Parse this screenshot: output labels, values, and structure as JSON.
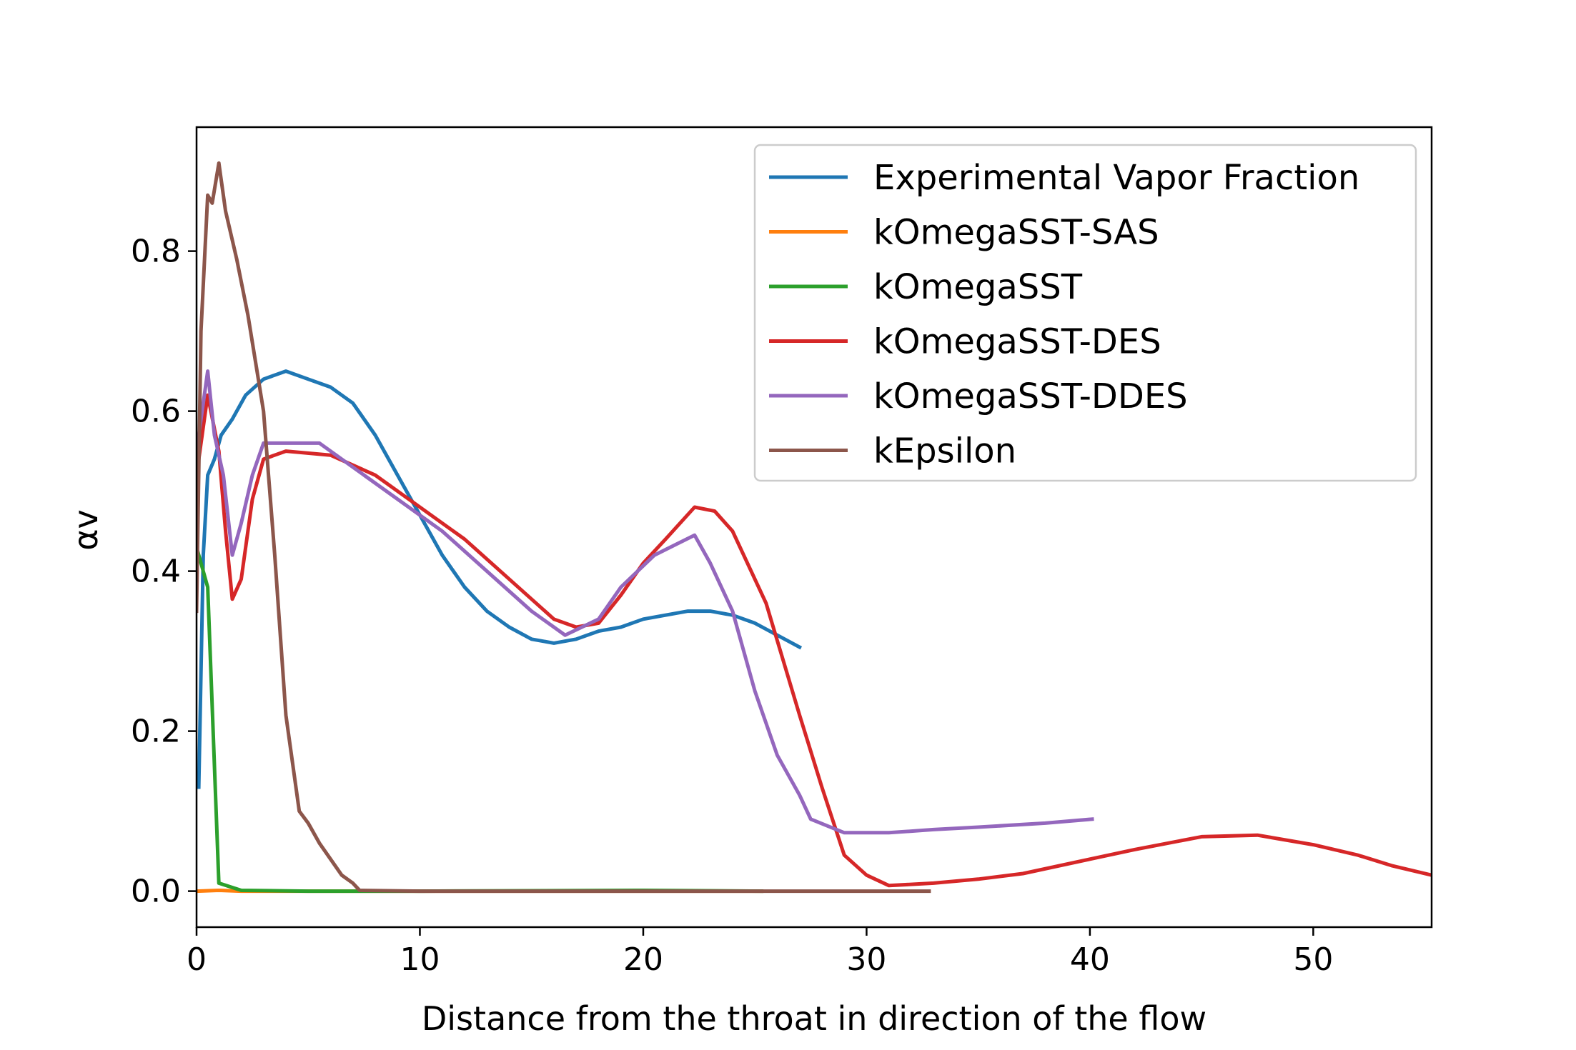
{
  "chart_data": {
    "type": "line",
    "title": "",
    "xlabel": "Distance from the throat in direction of the flow",
    "ylabel": "αv",
    "xlim": [
      0,
      55.3
    ],
    "ylim": [
      -0.045,
      0.955
    ],
    "xticks": [
      0,
      10,
      20,
      30,
      40,
      50
    ],
    "xtick_labels": [
      "0",
      "10",
      "20",
      "30",
      "40",
      "50"
    ],
    "yticks": [
      0.0,
      0.2,
      0.4,
      0.6,
      0.8
    ],
    "ytick_labels": [
      "0.0",
      "0.2",
      "0.4",
      "0.6",
      "0.8"
    ],
    "grid": false,
    "legend_position": "top-right",
    "series": [
      {
        "name": "Experimental Vapor Fraction",
        "color": "#1f77b4",
        "points": [
          [
            0.1,
            0.13
          ],
          [
            0.3,
            0.42
          ],
          [
            0.5,
            0.52
          ],
          [
            0.8,
            0.54
          ],
          [
            1.1,
            0.57
          ],
          [
            1.6,
            0.59
          ],
          [
            2.2,
            0.62
          ],
          [
            3.0,
            0.64
          ],
          [
            4.0,
            0.65
          ],
          [
            5.0,
            0.64
          ],
          [
            6.0,
            0.63
          ],
          [
            7.0,
            0.61
          ],
          [
            8.0,
            0.57
          ],
          [
            9.0,
            0.52
          ],
          [
            10.0,
            0.47
          ],
          [
            11.0,
            0.42
          ],
          [
            12.0,
            0.38
          ],
          [
            13.0,
            0.35
          ],
          [
            14.0,
            0.33
          ],
          [
            15.0,
            0.315
          ],
          [
            16.0,
            0.31
          ],
          [
            17.0,
            0.315
          ],
          [
            18.0,
            0.325
          ],
          [
            19.0,
            0.33
          ],
          [
            20.0,
            0.34
          ],
          [
            21.0,
            0.345
          ],
          [
            22.0,
            0.35
          ],
          [
            23.0,
            0.35
          ],
          [
            24.0,
            0.345
          ],
          [
            25.0,
            0.335
          ],
          [
            26.0,
            0.32
          ],
          [
            27.0,
            0.305
          ]
        ]
      },
      {
        "name": "kOmegaSST-SAS",
        "color": "#ff7f0e",
        "points": [
          [
            0.0,
            0.0
          ],
          [
            1.0,
            0.001
          ],
          [
            2.0,
            0.0
          ],
          [
            10.0,
            0.0
          ],
          [
            25.3,
            0.0
          ]
        ]
      },
      {
        "name": "kOmegaSST",
        "color": "#2ca02c",
        "points": [
          [
            0.0,
            0.43
          ],
          [
            0.5,
            0.38
          ],
          [
            1.0,
            0.01
          ],
          [
            2.0,
            0.001
          ],
          [
            5.0,
            0.0
          ],
          [
            10.0,
            0.0
          ],
          [
            20.0,
            0.001
          ],
          [
            25.3,
            0.0
          ]
        ]
      },
      {
        "name": "kOmegaSST-DES",
        "color": "#d62728",
        "points": [
          [
            0.0,
            0.52
          ],
          [
            0.5,
            0.62
          ],
          [
            1.0,
            0.55
          ],
          [
            1.3,
            0.45
          ],
          [
            1.6,
            0.365
          ],
          [
            2.0,
            0.39
          ],
          [
            2.5,
            0.49
          ],
          [
            3.0,
            0.54
          ],
          [
            4.0,
            0.55
          ],
          [
            6.0,
            0.545
          ],
          [
            8.0,
            0.52
          ],
          [
            10.0,
            0.48
          ],
          [
            12.0,
            0.44
          ],
          [
            14.0,
            0.39
          ],
          [
            16.0,
            0.34
          ],
          [
            17.0,
            0.33
          ],
          [
            18.0,
            0.335
          ],
          [
            19.0,
            0.37
          ],
          [
            20.0,
            0.41
          ],
          [
            21.0,
            0.44
          ],
          [
            22.3,
            0.48
          ],
          [
            23.2,
            0.475
          ],
          [
            24.0,
            0.45
          ],
          [
            25.5,
            0.36
          ],
          [
            27.0,
            0.22
          ],
          [
            28.0,
            0.13
          ],
          [
            29.0,
            0.045
          ],
          [
            30.0,
            0.02
          ],
          [
            31.0,
            0.007
          ],
          [
            33.0,
            0.01
          ],
          [
            35.0,
            0.015
          ],
          [
            37.0,
            0.022
          ],
          [
            40.0,
            0.04
          ],
          [
            42.0,
            0.052
          ],
          [
            45.0,
            0.068
          ],
          [
            47.5,
            0.07
          ],
          [
            50.0,
            0.058
          ],
          [
            52.0,
            0.045
          ],
          [
            53.5,
            0.032
          ],
          [
            55.3,
            0.02
          ]
        ]
      },
      {
        "name": "kOmegaSST-DDES",
        "color": "#9467bd",
        "points": [
          [
            0.0,
            0.55
          ],
          [
            0.5,
            0.65
          ],
          [
            0.8,
            0.57
          ],
          [
            1.2,
            0.52
          ],
          [
            1.6,
            0.42
          ],
          [
            2.0,
            0.46
          ],
          [
            2.5,
            0.52
          ],
          [
            3.0,
            0.56
          ],
          [
            4.0,
            0.56
          ],
          [
            5.5,
            0.56
          ],
          [
            7.0,
            0.53
          ],
          [
            9.0,
            0.49
          ],
          [
            11.0,
            0.45
          ],
          [
            13.0,
            0.4
          ],
          [
            15.0,
            0.35
          ],
          [
            16.5,
            0.32
          ],
          [
            18.0,
            0.34
          ],
          [
            19.0,
            0.38
          ],
          [
            20.5,
            0.42
          ],
          [
            22.3,
            0.445
          ],
          [
            23.0,
            0.41
          ],
          [
            24.0,
            0.35
          ],
          [
            25.0,
            0.25
          ],
          [
            26.0,
            0.17
          ],
          [
            27.0,
            0.12
          ],
          [
            27.5,
            0.09
          ],
          [
            29.0,
            0.073
          ],
          [
            31.0,
            0.073
          ],
          [
            33.0,
            0.077
          ],
          [
            35.0,
            0.08
          ],
          [
            38.0,
            0.085
          ],
          [
            40.1,
            0.09
          ]
        ]
      },
      {
        "name": "kEpsilon",
        "color": "#8c564b",
        "points": [
          [
            0.0,
            0.35
          ],
          [
            0.2,
            0.7
          ],
          [
            0.5,
            0.87
          ],
          [
            0.7,
            0.86
          ],
          [
            1.0,
            0.91
          ],
          [
            1.3,
            0.85
          ],
          [
            1.8,
            0.79
          ],
          [
            2.3,
            0.72
          ],
          [
            3.0,
            0.6
          ],
          [
            3.5,
            0.42
          ],
          [
            4.0,
            0.22
          ],
          [
            4.6,
            0.1
          ],
          [
            5.0,
            0.085
          ],
          [
            5.5,
            0.06
          ],
          [
            6.0,
            0.04
          ],
          [
            6.5,
            0.02
          ],
          [
            7.0,
            0.01
          ],
          [
            7.3,
            0.001
          ],
          [
            10.0,
            0.0
          ],
          [
            20.0,
            0.0
          ],
          [
            32.8,
            0.0
          ]
        ]
      }
    ]
  }
}
